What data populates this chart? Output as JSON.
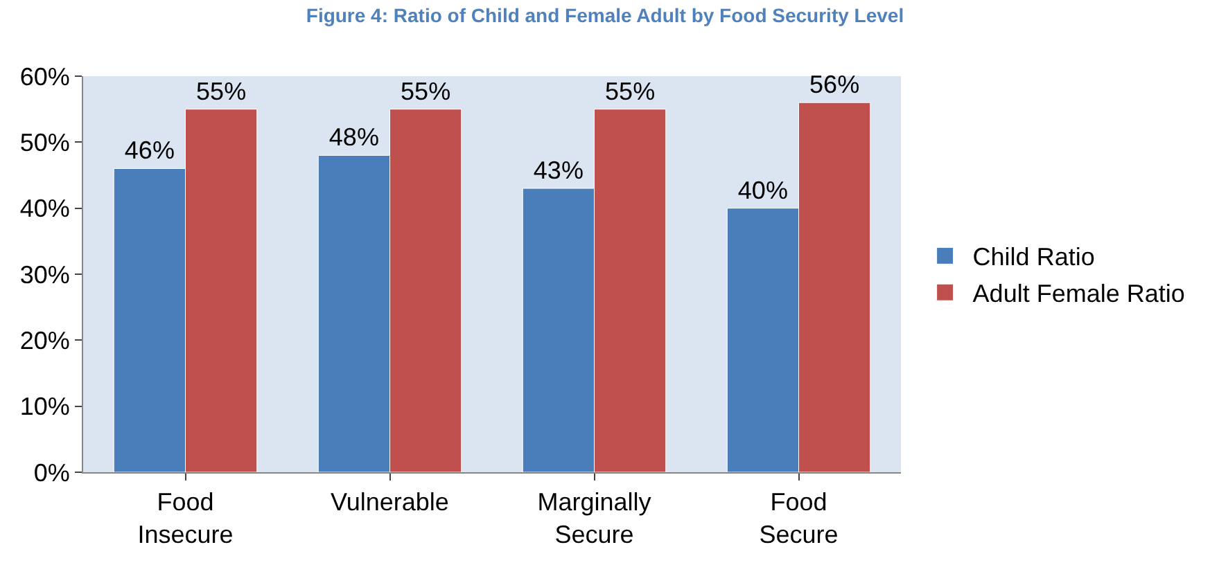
{
  "chart_data": {
    "type": "bar",
    "title": "Figure 4: Ratio of Child and Female Adult by Food Security Level",
    "categories": [
      "Food Insecure",
      "Vulnerable",
      "Marginally Secure",
      "Food Secure"
    ],
    "series": [
      {
        "name": "Child Ratio",
        "color": "#4a7ebb",
        "values": [
          46,
          48,
          43,
          40
        ],
        "value_labels": [
          "46%",
          "48%",
          "43%",
          "40%"
        ]
      },
      {
        "name": "Adult Female Ratio",
        "color": "#c0504d",
        "values": [
          55,
          55,
          55,
          56
        ],
        "value_labels": [
          "55%",
          "55%",
          "55%",
          "56%"
        ]
      }
    ],
    "ylim": [
      0,
      60
    ],
    "yticks": [
      {
        "value": 0,
        "label": "0%"
      },
      {
        "value": 10,
        "label": "10%"
      },
      {
        "value": 20,
        "label": "20%"
      },
      {
        "value": 30,
        "label": "30%"
      },
      {
        "value": 40,
        "label": "40%"
      },
      {
        "value": 50,
        "label": "50%"
      },
      {
        "value": 60,
        "label": "60%"
      }
    ],
    "legend": "right",
    "grid": false
  }
}
